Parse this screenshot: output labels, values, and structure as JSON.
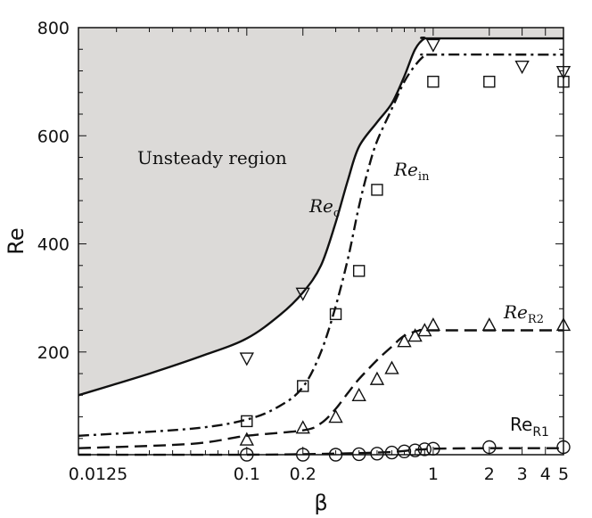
{
  "chart_data": {
    "type": "line",
    "xlabel": "β",
    "ylabel": "Re",
    "xscale": "log",
    "xlim": [
      0.0125,
      5
    ],
    "ylim": [
      10,
      800
    ],
    "x_tick_labels": [
      {
        "value": 0.0125,
        "label": "0.0125"
      },
      {
        "value": 0.1,
        "label": "0.1"
      },
      {
        "value": 0.2,
        "label": "0.2"
      },
      {
        "value": 1,
        "label": "1"
      },
      {
        "value": 2,
        "label": "2"
      },
      {
        "value": 3,
        "label": "3"
      },
      {
        "value": 4,
        "label": "4"
      },
      {
        "value": 5,
        "label": "5"
      }
    ],
    "y_tick_labels": [
      {
        "value": 200,
        "label": "200"
      },
      {
        "value": 400,
        "label": "400"
      },
      {
        "value": 600,
        "label": "600"
      },
      {
        "value": 800,
        "label": "800"
      }
    ],
    "region": {
      "label": "Unsteady region",
      "fill": "#dcdad8"
    },
    "lines": [
      {
        "label": "Re",
        "sub": "c",
        "style": "solid",
        "italic": true,
        "points": [
          [
            0.0125,
            120
          ],
          [
            0.03,
            160
          ],
          [
            0.06,
            195
          ],
          [
            0.1,
            225
          ],
          [
            0.15,
            268
          ],
          [
            0.2,
            310
          ],
          [
            0.25,
            360
          ],
          [
            0.3,
            440
          ],
          [
            0.35,
            520
          ],
          [
            0.4,
            580
          ],
          [
            0.5,
            625
          ],
          [
            0.6,
            660
          ],
          [
            0.7,
            710
          ],
          [
            0.8,
            760
          ],
          [
            0.9,
            780
          ],
          [
            1,
            780
          ],
          [
            5,
            780
          ]
        ]
      },
      {
        "label": "Re",
        "sub": "in",
        "style": "dashdot",
        "italic": true,
        "points": [
          [
            0.0125,
            45
          ],
          [
            0.05,
            58
          ],
          [
            0.1,
            75
          ],
          [
            0.15,
            100
          ],
          [
            0.2,
            135
          ],
          [
            0.25,
            200
          ],
          [
            0.3,
            285
          ],
          [
            0.35,
            375
          ],
          [
            0.4,
            470
          ],
          [
            0.45,
            540
          ],
          [
            0.5,
            590
          ],
          [
            0.6,
            650
          ],
          [
            0.7,
            700
          ],
          [
            0.8,
            730
          ],
          [
            0.9,
            748
          ],
          [
            1,
            750
          ],
          [
            5,
            750
          ]
        ]
      },
      {
        "label": "Re",
        "sub": "R2",
        "style": "dashed",
        "italic": true,
        "points": [
          [
            0.0125,
            22
          ],
          [
            0.05,
            30
          ],
          [
            0.1,
            45
          ],
          [
            0.2,
            55
          ],
          [
            0.25,
            68
          ],
          [
            0.3,
            95
          ],
          [
            0.35,
            125
          ],
          [
            0.4,
            150
          ],
          [
            0.5,
            185
          ],
          [
            0.6,
            210
          ],
          [
            0.7,
            230
          ],
          [
            0.85,
            240
          ],
          [
            1,
            240
          ],
          [
            5,
            240
          ]
        ]
      },
      {
        "label": "Re",
        "sub": "R1",
        "style": "dashed",
        "italic": false,
        "points": [
          [
            0.0125,
            10
          ],
          [
            0.1,
            10
          ],
          [
            0.2,
            11
          ],
          [
            0.3,
            12
          ],
          [
            0.4,
            13
          ],
          [
            0.5,
            14
          ],
          [
            0.6,
            15
          ],
          [
            0.7,
            17
          ],
          [
            0.8,
            19
          ],
          [
            0.9,
            20
          ],
          [
            1,
            21
          ],
          [
            2,
            22
          ],
          [
            5,
            22
          ]
        ]
      }
    ],
    "markers": [
      {
        "shape": "triangle-down",
        "points": [
          [
            0.1,
            188
          ],
          [
            0.2,
            308
          ],
          [
            1,
            768
          ],
          [
            3,
            728
          ],
          [
            5,
            718
          ]
        ]
      },
      {
        "shape": "square",
        "points": [
          [
            0.1,
            72
          ],
          [
            0.2,
            137
          ],
          [
            0.3,
            270
          ],
          [
            0.4,
            350
          ],
          [
            0.5,
            500
          ],
          [
            1,
            700
          ],
          [
            2,
            700
          ],
          [
            5,
            700
          ]
        ]
      },
      {
        "shape": "triangle-up",
        "points": [
          [
            0.1,
            38
          ],
          [
            0.2,
            60
          ],
          [
            0.3,
            80
          ],
          [
            0.4,
            120
          ],
          [
            0.5,
            150
          ],
          [
            0.6,
            170
          ],
          [
            0.7,
            220
          ],
          [
            0.8,
            230
          ],
          [
            0.9,
            240
          ],
          [
            1,
            250
          ],
          [
            2,
            250
          ],
          [
            5,
            250
          ]
        ]
      },
      {
        "shape": "circle",
        "points": [
          [
            0.1,
            10
          ],
          [
            0.2,
            10
          ],
          [
            0.3,
            10
          ],
          [
            0.4,
            11
          ],
          [
            0.5,
            12
          ],
          [
            0.6,
            14
          ],
          [
            0.7,
            16
          ],
          [
            0.8,
            18
          ],
          [
            0.9,
            20
          ],
          [
            1,
            21
          ],
          [
            2,
            24
          ],
          [
            5,
            24
          ]
        ]
      }
    ]
  }
}
